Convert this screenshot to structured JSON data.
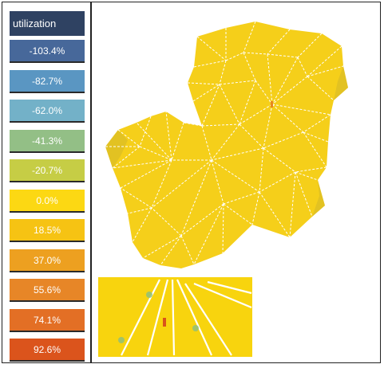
{
  "legend": {
    "title": "utilization",
    "items": [
      {
        "label": "-103.4%",
        "color": "#47689a"
      },
      {
        "label": "-82.7%",
        "color": "#5a96c2"
      },
      {
        "label": "-62.0%",
        "color": "#73b1c8"
      },
      {
        "label": "-41.3%",
        "color": "#93bf86"
      },
      {
        "label": "-20.7%",
        "color": "#c6cd45"
      },
      {
        "label": "0.0%",
        "color": "#fcd813"
      },
      {
        "label": "18.5%",
        "color": "#f6c313"
      },
      {
        "label": "37.0%",
        "color": "#eda020"
      },
      {
        "label": "55.6%",
        "color": "#e78627"
      },
      {
        "label": "74.1%",
        "color": "#e36f25"
      },
      {
        "label": "92.6%",
        "color": "#db541c"
      }
    ]
  },
  "model": {
    "surface_color": "#f5cf1a",
    "mesh_color": "#ffffff",
    "inset_color": "#f8d40e"
  }
}
